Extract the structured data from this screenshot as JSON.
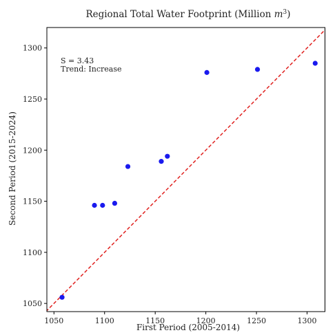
{
  "chart_data": {
    "type": "scatter",
    "title_text": "Regional Total Water Footprint (Million ",
    "title_unit_base": "m",
    "title_unit_exp": "3",
    "title_suffix": ")",
    "xlabel": "First Period (2005-2014)",
    "ylabel": "Second Period (2015-2024)",
    "xlim": [
      1043,
      1318
    ],
    "ylim": [
      1042,
      1320
    ],
    "xticks": [
      1050,
      1100,
      1150,
      1200,
      1250,
      1300
    ],
    "yticks": [
      1050,
      1100,
      1150,
      1200,
      1250,
      1300
    ],
    "points": [
      {
        "x": 1058,
        "y": 1056
      },
      {
        "x": 1090,
        "y": 1146
      },
      {
        "x": 1098,
        "y": 1146
      },
      {
        "x": 1110,
        "y": 1148
      },
      {
        "x": 1123,
        "y": 1184
      },
      {
        "x": 1156,
        "y": 1189
      },
      {
        "x": 1162,
        "y": 1194
      },
      {
        "x": 1201,
        "y": 1276
      },
      {
        "x": 1251,
        "y": 1279
      },
      {
        "x": 1308,
        "y": 1285
      }
    ],
    "reference_line": "y = x",
    "point_color": "#1a1aee",
    "line_color": "#e0201e",
    "annotation_line1": "S = 3.43",
    "annotation_line2": "Trend: Increase",
    "grid": false
  }
}
